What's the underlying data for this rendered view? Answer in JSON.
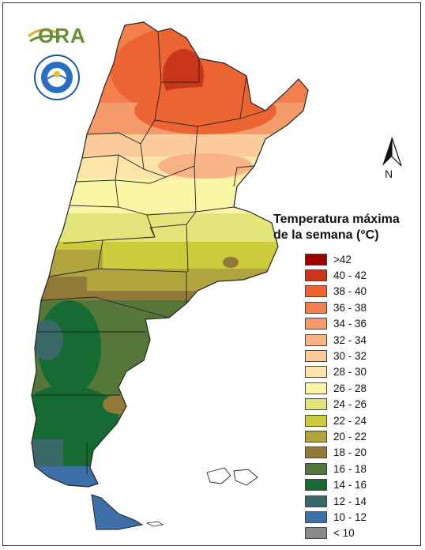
{
  "logo": {
    "text": "ORA"
  },
  "north_arrow": {
    "label": "N"
  },
  "legend": {
    "title": "Temperatura máxima\nde la semana (°C)",
    "items": [
      {
        "label": ">42",
        "color": "#990000"
      },
      {
        "label": "40 - 42",
        "color": "#c9361c"
      },
      {
        "label": "38 - 40",
        "color": "#ec6432"
      },
      {
        "label": "36 - 38",
        "color": "#f27f4d"
      },
      {
        "label": "34 - 36",
        "color": "#f59a6a"
      },
      {
        "label": "32 - 34",
        "color": "#f8b384"
      },
      {
        "label": "30 - 32",
        "color": "#fbcb9b"
      },
      {
        "label": "28 - 30",
        "color": "#fde4a8"
      },
      {
        "label": "26 - 28",
        "color": "#fbf6a6"
      },
      {
        "label": "24 - 26",
        "color": "#e3e479"
      },
      {
        "label": "22 - 24",
        "color": "#cbcb3c"
      },
      {
        "label": "20 - 22",
        "color": "#b1a43c"
      },
      {
        "label": "18 - 20",
        "color": "#927a3b"
      },
      {
        "label": "16 - 18",
        "color": "#56773a"
      },
      {
        "label": "14 - 16",
        "color": "#166b33"
      },
      {
        "label": "12 - 14",
        "color": "#3a6868"
      },
      {
        "label": "10 - 12",
        "color": "#3f6fa8"
      },
      {
        "label": "< 10",
        "color": "#8a8a8a"
      }
    ]
  },
  "map": {
    "boundary_color": "#222222"
  }
}
